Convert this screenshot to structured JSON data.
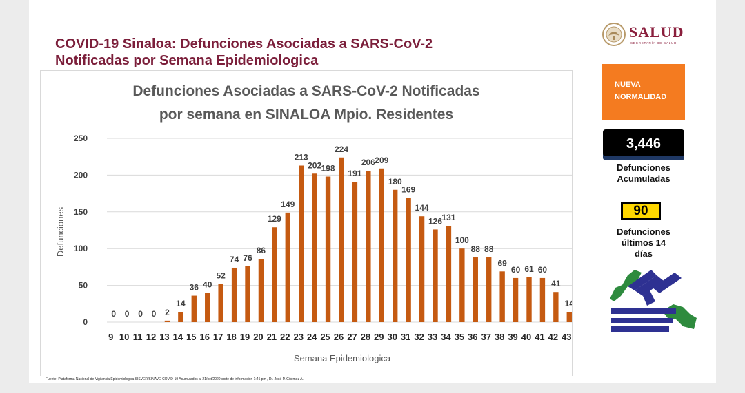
{
  "slide": {
    "title_line1": "COVID-19  Sinaloa: Defunciones Asociadas a SARS-CoV-2",
    "title_line2": "Notificadas por Semana Epidemiologica",
    "logo_name": "SALUD",
    "logo_subtitle": "SECRETARÍA DE SALUD",
    "source_note": "Fuente: Plataforma Nacional de Vigilancia Epidemiologica SISVER/SINAVE-COVID-19      Acumulados al 21/oct/2020 corte de información 1:45 pm , Dr. José P. Güémez A."
  },
  "sidebar": {
    "badge_line1": "NUEVA",
    "badge_line2": "NORMALIDAD",
    "cumulative_value": "3,446",
    "cumulative_label_line1": "Defunciones",
    "cumulative_label_line2": "Acumuladas",
    "recent_value": "90",
    "recent_label_line1": "Defunciones",
    "recent_label_line2": "últimos 14",
    "recent_label_line3": "días",
    "colors": {
      "badge": "#f47b20",
      "recent_box": "#ffd700",
      "emblem_blue": "#2e3192",
      "emblem_green": "#2e8b3e"
    }
  },
  "chart_data": {
    "type": "bar",
    "title_line1": "Defunciones Asociadas a SARS-CoV-2 Notificadas",
    "title_line2": "por semana en SINALOA Mpio. Residentes",
    "xlabel": "Semana Epidemiologica",
    "ylabel": "Defunciones",
    "categories": [
      "9",
      "10",
      "11",
      "12",
      "13",
      "14",
      "15",
      "16",
      "17",
      "18",
      "19",
      "20",
      "21",
      "22",
      "23",
      "24",
      "25",
      "26",
      "27",
      "28",
      "29",
      "30",
      "31",
      "32",
      "33",
      "34",
      "35",
      "36",
      "37",
      "38",
      "39",
      "40",
      "41",
      "42",
      "43"
    ],
    "values": [
      0,
      0,
      0,
      0,
      2,
      14,
      36,
      40,
      52,
      74,
      76,
      86,
      129,
      149,
      213,
      202,
      198,
      224,
      191,
      206,
      209,
      180,
      169,
      144,
      126,
      131,
      100,
      88,
      88,
      69,
      60,
      61,
      60,
      41,
      14
    ],
    "ylim": [
      0,
      250
    ],
    "yticks": [
      0,
      50,
      100,
      150,
      200,
      250
    ],
    "grid": true,
    "bar_color": "#c55a11"
  }
}
